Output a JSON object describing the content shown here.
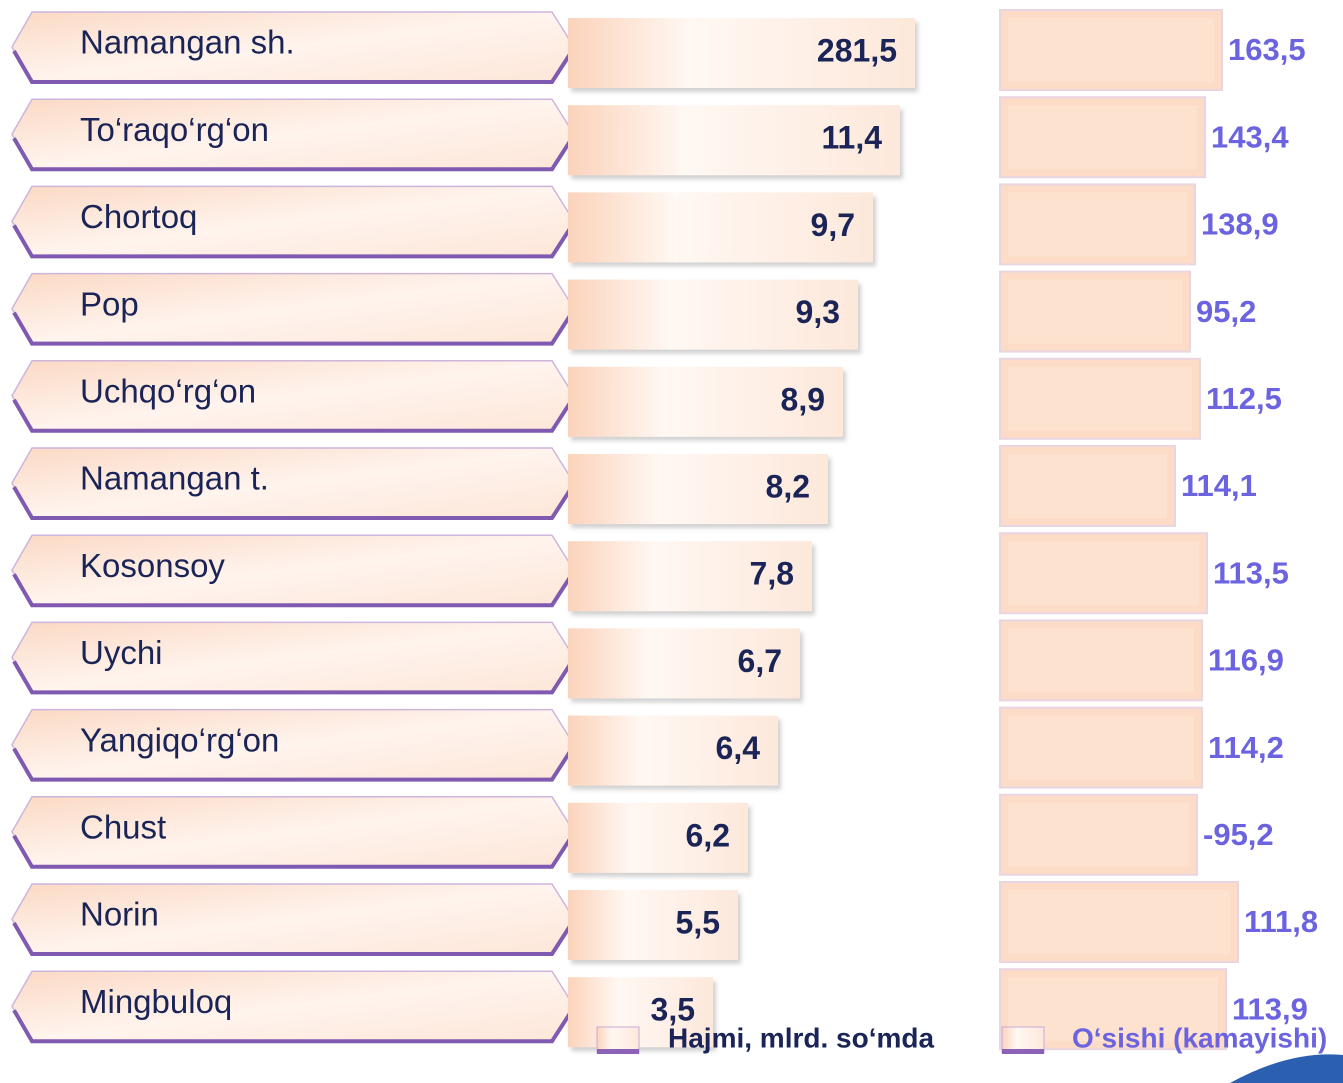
{
  "rows": [
    {
      "name": "Namangan sh.",
      "volume": "281,5",
      "growth": "163,5"
    },
    {
      "name": "To‘raqo‘rg‘on",
      "volume": "11,4",
      "growth": "143,4"
    },
    {
      "name": "Chortoq",
      "volume": "9,7",
      "growth": "138,9"
    },
    {
      "name": "Pop",
      "volume": "9,3",
      "growth": "95,2"
    },
    {
      "name": "Uchqo‘rg‘on",
      "volume": "8,9",
      "growth": "112,5"
    },
    {
      "name": "Namangan t.",
      "volume": "8,2",
      "growth": "114,1"
    },
    {
      "name": "Kosonsoy",
      "volume": "7,8",
      "growth": "113,5"
    },
    {
      "name": "Uychi",
      "volume": "6,7",
      "growth": "116,9"
    },
    {
      "name": "Yangiqo‘rg‘on",
      "volume": "6,4",
      "growth": "114,2"
    },
    {
      "name": "Chust",
      "volume": "6,2",
      "growth": "-95,2"
    },
    {
      "name": "Norin",
      "volume": "5,5",
      "growth": "111,8"
    },
    {
      "name": "Mingbuloq",
      "volume": "3,5",
      "growth": "113,9"
    }
  ],
  "legend": [
    "Hajmi, mlrd. so‘mda",
    "O‘sishi (kamayishi)"
  ]
}
